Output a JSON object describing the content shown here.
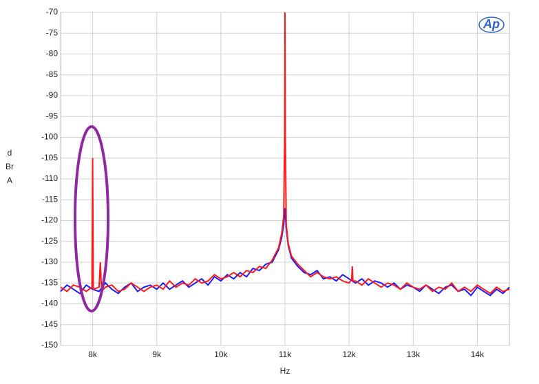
{
  "chart_data": {
    "type": "line",
    "xlabel": "Hz",
    "ylabel": "dBr A",
    "logo": "Ap",
    "xlim": [
      7500,
      14500
    ],
    "ylim": [
      -150,
      -70
    ],
    "xticks": [
      {
        "value": 8000,
        "label": "8k"
      },
      {
        "value": 9000,
        "label": "9k"
      },
      {
        "value": 10000,
        "label": "10k"
      },
      {
        "value": 11000,
        "label": "11k"
      },
      {
        "value": 12000,
        "label": "12k"
      },
      {
        "value": 13000,
        "label": "13k"
      },
      {
        "value": 14000,
        "label": "14k"
      }
    ],
    "yticks": [
      -70,
      -75,
      -80,
      -85,
      -90,
      -95,
      -100,
      -105,
      -110,
      -115,
      -120,
      -125,
      -130,
      -135,
      -140,
      -145,
      -150
    ],
    "grid": true,
    "series": [
      {
        "color": "#1a1aff",
        "x": [
          7500,
          7600,
          7700,
          7800,
          7900,
          8000,
          8100,
          8200,
          8300,
          8400,
          8500,
          8600,
          8700,
          8800,
          8900,
          9000,
          9100,
          9200,
          9300,
          9400,
          9500,
          9600,
          9700,
          9800,
          9900,
          10000,
          10100,
          10200,
          10300,
          10400,
          10500,
          10600,
          10700,
          10800,
          10900,
          10950,
          10980,
          11000,
          11020,
          11050,
          11100,
          11200,
          11300,
          11400,
          11500,
          11600,
          11700,
          11800,
          11900,
          12000,
          12100,
          12200,
          12300,
          12400,
          12500,
          12600,
          12700,
          12800,
          12900,
          13000,
          13100,
          13200,
          13300,
          13400,
          13500,
          13600,
          13700,
          13800,
          13900,
          14000,
          14100,
          14200,
          14300,
          14400,
          14500
        ],
        "values": [
          -137,
          -135.5,
          -136.5,
          -137.5,
          -135.5,
          -136.5,
          -137,
          -135,
          -136.5,
          -137.5,
          -136,
          -135,
          -137,
          -136,
          -135.5,
          -136.5,
          -135,
          -136.5,
          -135.5,
          -134.5,
          -136,
          -135,
          -134,
          -135.5,
          -133.5,
          -134.5,
          -133,
          -134,
          -132.5,
          -133.5,
          -131.5,
          -132,
          -130.5,
          -130,
          -127,
          -124,
          -121,
          -117,
          -122,
          -126,
          -129,
          -131,
          -132.5,
          -133,
          -132,
          -134,
          -133.5,
          -134.5,
          -133,
          -134,
          -135,
          -134,
          -135.5,
          -134.5,
          -135,
          -136,
          -135,
          -136.5,
          -135.5,
          -136,
          -137,
          -135.5,
          -136.5,
          -137.5,
          -136,
          -135.5,
          -137,
          -136.5,
          -138,
          -136,
          -137,
          -138,
          -136.5,
          -137.5,
          -136
        ]
      },
      {
        "color": "#ff1a1a",
        "x": [
          7500,
          7600,
          7700,
          7800,
          7900,
          7990,
          8000,
          8010,
          8100,
          8120,
          8140,
          8200,
          8300,
          8400,
          8500,
          8600,
          8700,
          8800,
          8900,
          9000,
          9100,
          9200,
          9300,
          9400,
          9500,
          9600,
          9700,
          9800,
          9900,
          10000,
          10100,
          10200,
          10300,
          10400,
          10500,
          10600,
          10700,
          10800,
          10900,
          10950,
          10980,
          10995,
          11000,
          11005,
          11020,
          11050,
          11100,
          11200,
          11300,
          11400,
          11500,
          11600,
          11700,
          11800,
          11900,
          12000,
          12040,
          12050,
          12060,
          12100,
          12200,
          12300,
          12400,
          12500,
          12600,
          12700,
          12800,
          12900,
          13000,
          13100,
          13200,
          13300,
          13400,
          13500,
          13600,
          13700,
          13800,
          13900,
          14000,
          14100,
          14200,
          14300,
          14400,
          14500
        ],
        "values": [
          -136,
          -137,
          -135.5,
          -136,
          -137,
          -136,
          -105,
          -136.5,
          -136,
          -130,
          -137,
          -136,
          -135.5,
          -137,
          -136.5,
          -135,
          -136,
          -137,
          -136,
          -135.5,
          -136.5,
          -134.5,
          -136,
          -135,
          -135.5,
          -134,
          -135,
          -134.5,
          -133,
          -134,
          -133.5,
          -132.5,
          -133.5,
          -132,
          -132.5,
          -131,
          -131.5,
          -129.5,
          -126.5,
          -123,
          -119,
          -100,
          -70,
          -100,
          -121,
          -125.5,
          -128.5,
          -130.5,
          -132,
          -133.5,
          -132.5,
          -133.5,
          -134,
          -133.5,
          -134.5,
          -135,
          -134,
          -131,
          -134.5,
          -134.5,
          -135.5,
          -134,
          -135,
          -136,
          -135,
          -135.5,
          -136.5,
          -135,
          -136,
          -136.5,
          -135.5,
          -137,
          -136,
          -136.5,
          -135,
          -137,
          -136,
          -137,
          -135.5,
          -136.5,
          -137.5,
          -136,
          -137,
          -136.5
        ]
      }
    ]
  }
}
